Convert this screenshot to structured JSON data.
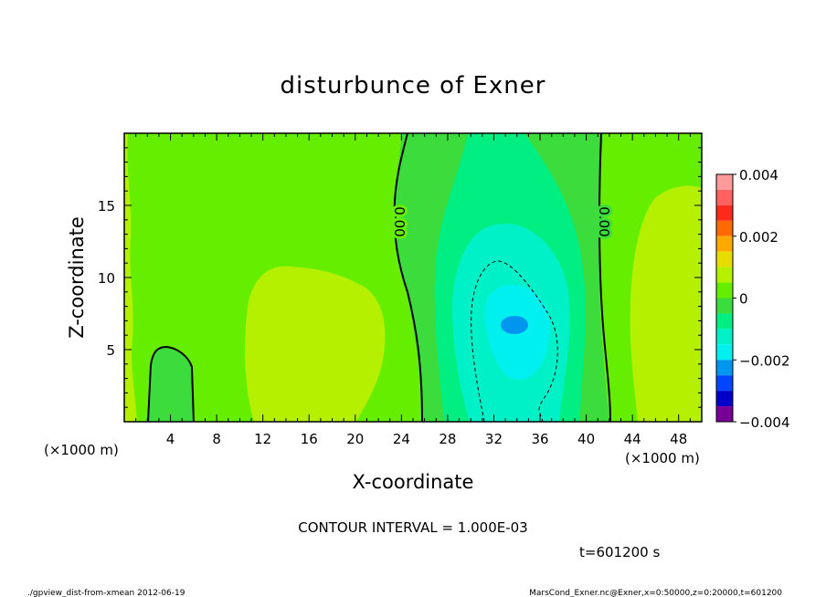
{
  "chart_data": {
    "type": "heatmap",
    "title": "disturbunce of Exner",
    "xlabel": "X-coordinate",
    "ylabel": "Z-coordinate",
    "x_unit": "(×1000 m)",
    "xlim": [
      0,
      50
    ],
    "ylim": [
      0,
      20
    ],
    "x_ticks": [
      4,
      8,
      12,
      16,
      20,
      24,
      28,
      32,
      36,
      40,
      44,
      48
    ],
    "y_ticks": [
      5,
      10,
      15
    ],
    "contour_label": "0.00",
    "contour_interval": "CONTOUR INTERVAL = 1.000E-03",
    "time_label": "t=601200 s",
    "colorbar": {
      "ticks": [
        "0.004",
        "0.002",
        "0",
        "−0.002",
        "−0.004"
      ],
      "levels": [
        {
          "from": 0.0035,
          "to": 0.004,
          "color": "#ff9a9a"
        },
        {
          "from": 0.003,
          "to": 0.0035,
          "color": "#ff6060"
        },
        {
          "from": 0.0025,
          "to": 0.003,
          "color": "#ff2a1a"
        },
        {
          "from": 0.002,
          "to": 0.0025,
          "color": "#ff6a00"
        },
        {
          "from": 0.0015,
          "to": 0.002,
          "color": "#ffa800"
        },
        {
          "from": 0.001,
          "to": 0.0015,
          "color": "#e6dc00"
        },
        {
          "from": 0.0005,
          "to": 0.001,
          "color": "#b4f000"
        },
        {
          "from": 0.0,
          "to": 0.0005,
          "color": "#66ee00"
        },
        {
          "from": -0.0005,
          "to": 0.0,
          "color": "#3cdc3c"
        },
        {
          "from": -0.001,
          "to": -0.0005,
          "color": "#00ee82"
        },
        {
          "from": -0.0015,
          "to": -0.001,
          "color": "#00f0c8"
        },
        {
          "from": -0.002,
          "to": -0.0015,
          "color": "#00f0f0"
        },
        {
          "from": -0.0025,
          "to": -0.002,
          "color": "#0096f0"
        },
        {
          "from": -0.003,
          "to": -0.0025,
          "color": "#0046ff"
        },
        {
          "from": -0.0035,
          "to": -0.003,
          "color": "#0000c8"
        },
        {
          "from": -0.004,
          "to": -0.0035,
          "color": "#780096"
        }
      ]
    }
  },
  "footer": {
    "left": "./gpview_dist-from-xmean  2012-06-19",
    "right": "MarsCond_Exner.nc@Exner,x=0:50000,z=0:20000,t=601200"
  }
}
